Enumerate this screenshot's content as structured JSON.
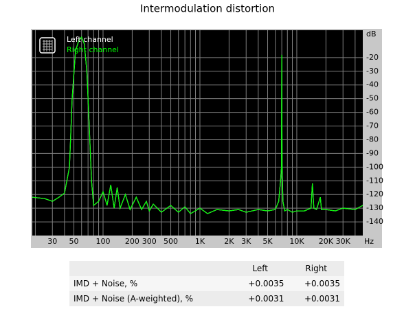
{
  "chart_data": {
    "type": "line",
    "title": "Intermodulation distortion",
    "x_unit_label": "Hz",
    "y_unit_label": "dB",
    "xlog": true,
    "grid": true,
    "legend": "upper left",
    "xlim": [
      18.6,
      48000
    ],
    "ylim": [
      -150,
      0
    ],
    "xticks": [
      30,
      50,
      100,
      200,
      300,
      500,
      {
        "value": 1000,
        "label": "1K"
      },
      {
        "value": 2000,
        "label": "2K"
      },
      {
        "value": 3000,
        "label": "3K"
      },
      {
        "value": 5000,
        "label": "5K"
      },
      {
        "value": 10000,
        "label": "10K"
      },
      {
        "value": 20000,
        "label": "20K"
      },
      {
        "value": 30000,
        "label": "30K"
      }
    ],
    "x_minor_ticks": [
      20,
      40,
      60,
      70,
      80,
      90,
      400,
      600,
      700,
      800,
      900,
      4000,
      6000,
      7000,
      8000,
      9000,
      40000
    ],
    "yticks": [
      -20,
      -30,
      -40,
      -50,
      -60,
      -70,
      -80,
      -90,
      -100,
      -110,
      -120,
      -130,
      -140
    ],
    "x": [
      18.6,
      25,
      30,
      35,
      40,
      45,
      48,
      52,
      56,
      60,
      64,
      68,
      72,
      76,
      80,
      90,
      100,
      110,
      120,
      130,
      140,
      150,
      170,
      190,
      220,
      250,
      280,
      300,
      330,
      400,
      500,
      600,
      700,
      800,
      1000,
      1200,
      1500,
      2000,
      2500,
      3000,
      4000,
      5000,
      6000,
      6500,
      6800,
      6950,
      7000,
      7050,
      7200,
      7500,
      8000,
      9000,
      10000,
      12000,
      14000,
      14500,
      15000,
      16000,
      17500,
      18000,
      20000,
      25000,
      30000,
      40000,
      48000
    ],
    "series": [
      {
        "name": "Left channel",
        "color": "#ffffff",
        "values": [
          -122,
          -123,
          -125,
          -122,
          -119,
          -100,
          -50,
          -15,
          -8,
          -5,
          -10,
          -30,
          -70,
          -110,
          -128,
          -125,
          -118,
          -128,
          -113,
          -130,
          -115,
          -130,
          -120,
          -131,
          -122,
          -131,
          -125,
          -132,
          -127,
          -133,
          -128,
          -133,
          -129,
          -134,
          -130,
          -134,
          -131,
          -132,
          -131,
          -133,
          -131,
          -132,
          -131,
          -125,
          -110,
          -100,
          -18,
          -100,
          -125,
          -132,
          -131,
          -133,
          -132,
          -132,
          -130,
          -112,
          -130,
          -131,
          -122,
          -131,
          -131,
          -132,
          -130,
          -131,
          -128
        ]
      },
      {
        "name": "Right channel",
        "color": "#00ff00",
        "values": [
          -122,
          -123,
          -125,
          -122,
          -119,
          -100,
          -50,
          -15,
          -8,
          -5,
          -10,
          -30,
          -70,
          -110,
          -128,
          -125,
          -118,
          -128,
          -113,
          -130,
          -115,
          -130,
          -120,
          -131,
          -122,
          -131,
          -125,
          -132,
          -127,
          -133,
          -128,
          -133,
          -129,
          -134,
          -130,
          -134,
          -131,
          -132,
          -131,
          -133,
          -131,
          -132,
          -131,
          -125,
          -110,
          -100,
          -18,
          -100,
          -125,
          -132,
          -131,
          -133,
          -132,
          -132,
          -130,
          -112,
          -130,
          -131,
          -122,
          -131,
          -131,
          -132,
          -130,
          -131,
          -128
        ]
      }
    ]
  },
  "table": {
    "header": [
      "Left",
      "Right"
    ],
    "rows": [
      [
        "IMD + Noise, %",
        "+0.0035",
        "+0.0035"
      ],
      [
        "IMD + Noise (A-weighted), %",
        "+0.0031",
        "+0.0031"
      ]
    ]
  }
}
